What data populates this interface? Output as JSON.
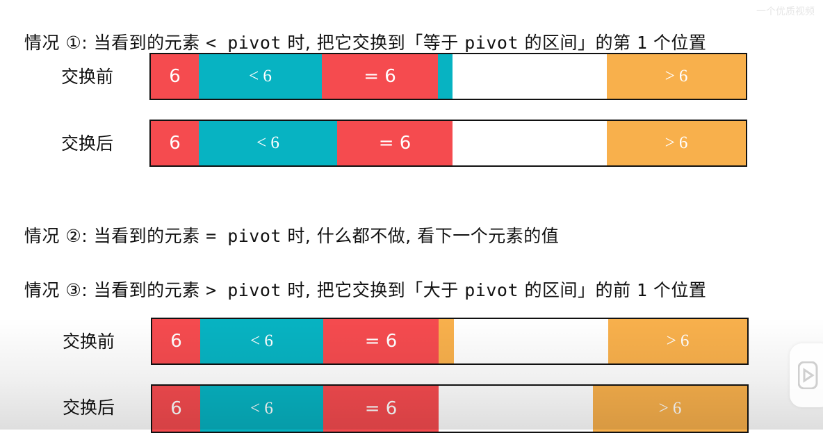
{
  "case1": {
    "prefix": "情况 ①: 当看到的元素 ",
    "code": "< pivot",
    "suffix": " 时, 把它交换到「等于 ",
    "code2": "pivot",
    "suffix2": " 的区间」的第 ",
    "code3": "1",
    "suffix3": " 个位置"
  },
  "case2": {
    "prefix": "情况 ②: 当看到的元素 ",
    "code": "= pivot",
    "suffix": " 时, 什么都不做, 看下一个元素的值"
  },
  "case3": {
    "prefix": "情况 ③: 当看到的元素 ",
    "code": "> pivot",
    "suffix": " 时, 把它交换到「大于 ",
    "code2": "pivot",
    "suffix2": " 的区间」的前 ",
    "code3": "1",
    "suffix3": " 个位置"
  },
  "labels": {
    "before": "交换前",
    "after": "交换后"
  },
  "segments": {
    "pivot": "6",
    "less": "< 6",
    "equal": "= 6",
    "greater": "> 6"
  },
  "colors": {
    "red": "#f54b4f",
    "teal": "#07b3c2",
    "orange": "#f8b04c"
  },
  "watermark": "一个优质视频"
}
